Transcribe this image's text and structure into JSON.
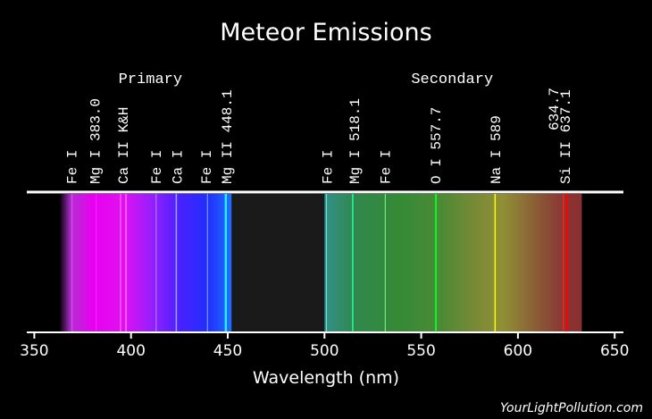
{
  "chart_data": {
    "type": "spectrum",
    "title": "Meteor Emissions",
    "xlabel": "Wavelength (nm)",
    "xlim": [
      345,
      655
    ],
    "xticks": [
      350,
      400,
      450,
      500,
      550,
      600,
      650
    ],
    "xtick_labels": [
      "350",
      "400",
      "450",
      "500",
      "550",
      "600",
      "650"
    ],
    "groups": [
      {
        "label": "Primary",
        "center_nm": 410
      },
      {
        "label": "Secondary",
        "center_nm": 566
      }
    ],
    "spectrum_bands": [
      {
        "from_nm": 363,
        "to_nm": 452,
        "stops": [
          {
            "nm": 363,
            "color": "#000000"
          },
          {
            "nm": 369,
            "color": "#b030d0"
          },
          {
            "nm": 380,
            "color": "#e800f0"
          },
          {
            "nm": 396,
            "color": "#e010f0"
          },
          {
            "nm": 412,
            "color": "#9020ff"
          },
          {
            "nm": 425,
            "color": "#4a20ff"
          },
          {
            "nm": 440,
            "color": "#2030ff"
          },
          {
            "nm": 452,
            "color": "#2070ff"
          }
        ]
      },
      {
        "from_nm": 452,
        "to_nm": 500,
        "stops": [
          {
            "nm": 452,
            "color": "#1a1a1a"
          },
          {
            "nm": 500,
            "color": "#1a1a1a"
          }
        ]
      },
      {
        "from_nm": 500,
        "to_nm": 633,
        "stops": [
          {
            "nm": 500,
            "color": "#33908a"
          },
          {
            "nm": 515,
            "color": "#30884e"
          },
          {
            "nm": 540,
            "color": "#368a35"
          },
          {
            "nm": 560,
            "color": "#4c8a36"
          },
          {
            "nm": 580,
            "color": "#7c8a36"
          },
          {
            "nm": 592,
            "color": "#909036"
          },
          {
            "nm": 603,
            "color": "#8c7036"
          },
          {
            "nm": 615,
            "color": "#8a4c36"
          },
          {
            "nm": 625,
            "color": "#8a3232"
          },
          {
            "nm": 633,
            "color": "#8a3030"
          }
        ]
      }
    ],
    "emission_lines": [
      {
        "nm": 369.5,
        "color": "#ff40ff",
        "width": 1
      },
      {
        "nm": 382.0,
        "color": "#ff20ff",
        "width": 1
      },
      {
        "nm": 394.6,
        "color": "#ff80ff",
        "width": 1
      },
      {
        "nm": 397.4,
        "color": "#ff50ff",
        "width": 2
      },
      {
        "nm": 413.0,
        "color": "#c080ff",
        "width": 1
      },
      {
        "nm": 423.4,
        "color": "#a0a0ff",
        "width": 1.5
      },
      {
        "nm": 439.5,
        "color": "#80b0ff",
        "width": 1
      },
      {
        "nm": 449.0,
        "color": "#20f0ff",
        "width": 2.5
      },
      {
        "nm": 501.0,
        "color": "#60e0e0",
        "width": 1.2
      },
      {
        "nm": 514.6,
        "color": "#20ffa0",
        "width": 1.5
      },
      {
        "nm": 531.4,
        "color": "#80ff80",
        "width": 1
      },
      {
        "nm": 557.6,
        "color": "#00ff20",
        "width": 2
      },
      {
        "nm": 588.2,
        "color": "#ffff00",
        "width": 1.5
      },
      {
        "nm": 623.5,
        "color": "#ff2020",
        "width": 1.5
      },
      {
        "nm": 625.5,
        "color": "#ff0000",
        "width": 2
      }
    ],
    "line_labels": [
      {
        "text": "Fe I",
        "nm": 369.5
      },
      {
        "text": "Mg I 383.0",
        "nm": 381.5
      },
      {
        "text": "Ca II K&H",
        "nm": 396.0
      },
      {
        "text": "Fe I",
        "nm": 413.0
      },
      {
        "text": "Ca I",
        "nm": 423.8
      },
      {
        "text": "Fe I",
        "nm": 439.0
      },
      {
        "text": "Mg II 448.1",
        "nm": 449.5
      },
      {
        "text": "Fe I",
        "nm": 501.5
      },
      {
        "text": "Mg I 518.1",
        "nm": 515.5
      },
      {
        "text": "Fe I",
        "nm": 531.5
      },
      {
        "text": "O I 557.7",
        "nm": 557.5
      },
      {
        "text": "Na I 589",
        "nm": 588.5
      },
      {
        "text": "Si II 637.1",
        "nm": 624.5
      }
    ],
    "top_labels": [
      {
        "text": "634.7",
        "nm": 618.5
      }
    ]
  },
  "watermark": "YourLightPollution.com"
}
